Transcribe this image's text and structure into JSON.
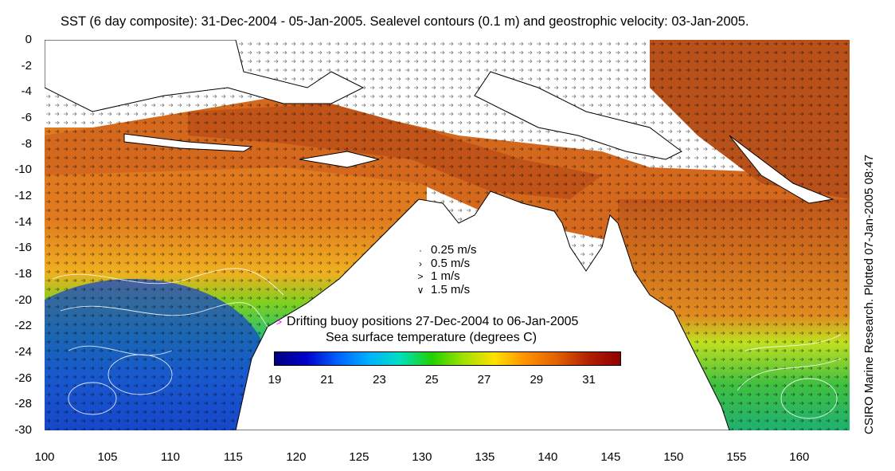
{
  "title": "SST (6 day composite): 31-Dec-2004 - 05-Jan-2005. Sealevel contours (0.1 m) and geostrophic velocity: 03-Jan-2005.",
  "side_label": "CSIRO Marine Research. Plotted 07-Jan-2005 08:47",
  "map": {
    "y_ticks": [
      "0",
      "-2",
      "-4",
      "-6",
      "-8",
      "-10",
      "-12",
      "-14",
      "-16",
      "-18",
      "-20",
      "-22",
      "-24",
      "-26",
      "-28",
      "-30"
    ],
    "x_ticks": [
      "100",
      "105",
      "110",
      "115",
      "120",
      "125",
      "130",
      "135",
      "140",
      "145",
      "150",
      "155",
      "160"
    ],
    "lat_range": [
      -30,
      0
    ],
    "lon_range": [
      100,
      164
    ]
  },
  "velocity_legend": [
    {
      "label": "0.25 m/s",
      "symbol": "·"
    },
    {
      "label": "0.5 m/s",
      "symbol": "›"
    },
    {
      "label": "1 m/s",
      "symbol": ">"
    },
    {
      "label": "1.5 m/s",
      "symbol": "∨"
    }
  ],
  "buoy_legend": {
    "symbol": ">",
    "label": "Drifting buoy positions 27-Dec-2004 to 06-Jan-2005",
    "color": "#ff00ff"
  },
  "colorbar": {
    "title": "Sea surface temperature (degrees C)",
    "labels": [
      "19",
      "21",
      "23",
      "25",
      "27",
      "29",
      "31"
    ],
    "range": [
      19,
      32.2
    ],
    "colors": [
      "#00007f",
      "#0000c8",
      "#0060ff",
      "#00b0ff",
      "#00e0c0",
      "#20d000",
      "#a0e000",
      "#ffe000",
      "#ff9000",
      "#e06000",
      "#b02000",
      "#900000"
    ]
  },
  "colors": {
    "land": "#ffffff",
    "coast": "#000000",
    "warm": "#d2691e",
    "hot": "#b8421a",
    "mid": "#39c64a",
    "cool": "#1f8fe0",
    "cold": "#1747c8"
  }
}
